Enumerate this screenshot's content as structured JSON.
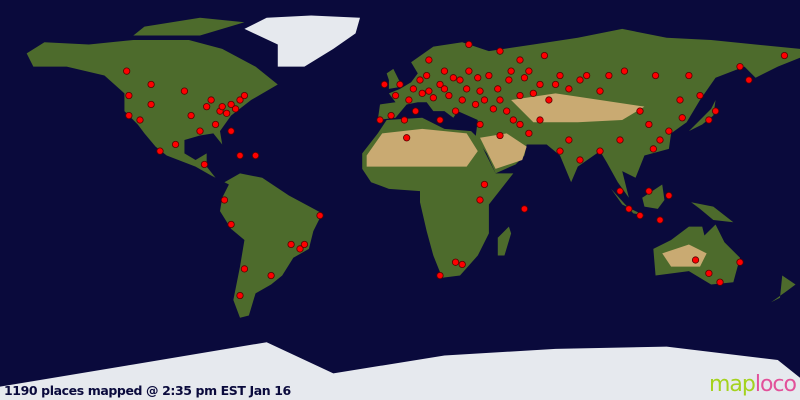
{
  "status_text": "1190 places mapped @ 2:35 pm EST Jan 16",
  "logo": {
    "part1": "map",
    "part2": "loco"
  },
  "colors": {
    "ocean": "#0a0a3c",
    "land": "#4d6b2c",
    "desert": "#c9aa72",
    "ice": "#e6e9ee",
    "marker": "#ff0000",
    "marker_outline": "#5a0000"
  },
  "markers_lonlat": [
    [
      -122,
      47
    ],
    [
      -122,
      38
    ],
    [
      -117,
      36
    ],
    [
      -112,
      43
    ],
    [
      -97,
      49
    ],
    [
      -94,
      38
    ],
    [
      -85,
      45
    ],
    [
      -81,
      40
    ],
    [
      -76,
      43
    ],
    [
      -72,
      45
    ],
    [
      -70,
      47
    ],
    [
      -83,
      34
    ],
    [
      -90,
      31
    ],
    [
      -76,
      31
    ],
    [
      -108,
      22
    ],
    [
      -101,
      25
    ],
    [
      -65,
      20
    ],
    [
      -72,
      20
    ],
    [
      -88,
      16
    ],
    [
      -112,
      52
    ],
    [
      -123,
      58
    ],
    [
      -80,
      42
    ],
    [
      -87,
      42
    ],
    [
      -78,
      39
    ],
    [
      -74,
      41
    ],
    [
      -79,
      0
    ],
    [
      -76,
      -11
    ],
    [
      -49,
      -20
    ],
    [
      -45,
      -22
    ],
    [
      -36,
      -7
    ],
    [
      -70,
      -31
    ],
    [
      -58,
      -34
    ],
    [
      -72,
      -43
    ],
    [
      -43,
      -20
    ],
    [
      -7,
      52
    ],
    [
      -2,
      47
    ],
    [
      4,
      45
    ],
    [
      9,
      54
    ],
    [
      13,
      49
    ],
    [
      18,
      52
    ],
    [
      22,
      47
    ],
    [
      27,
      54
    ],
    [
      31,
      58
    ],
    [
      36,
      49
    ],
    [
      40,
      56
    ],
    [
      45,
      45
    ],
    [
      49,
      54
    ],
    [
      54,
      47
    ],
    [
      58,
      58
    ],
    [
      63,
      52
    ],
    [
      67,
      45
    ],
    [
      72,
      56
    ],
    [
      31,
      70
    ],
    [
      45,
      67
    ],
    [
      -9,
      36
    ],
    [
      -4,
      38
    ],
    [
      2,
      36
    ],
    [
      18,
      36
    ],
    [
      25,
      40
    ],
    [
      34,
      43
    ],
    [
      54,
      63
    ],
    [
      65,
      65
    ],
    [
      81,
      54
    ],
    [
      90,
      49
    ],
    [
      94,
      56
    ],
    [
      101,
      58
    ],
    [
      13,
      63
    ],
    [
      20,
      58
    ],
    [
      7,
      40
    ],
    [
      36,
      34
    ],
    [
      54,
      34
    ],
    [
      0,
      52
    ],
    [
      6,
      50
    ],
    [
      10,
      48
    ],
    [
      15,
      46
    ],
    [
      20,
      50
    ],
    [
      24,
      55
    ],
    [
      30,
      50
    ],
    [
      35,
      55
    ],
    [
      38,
      45
    ],
    [
      44,
      50
    ],
    [
      50,
      58
    ],
    [
      56,
      55
    ],
    [
      60,
      48
    ],
    [
      70,
      52
    ],
    [
      76,
      50
    ],
    [
      84,
      56
    ],
    [
      12,
      56
    ],
    [
      28,
      45
    ],
    [
      42,
      41
    ],
    [
      48,
      40
    ],
    [
      3,
      28
    ],
    [
      18,
      -34
    ],
    [
      25,
      -28
    ],
    [
      36,
      0
    ],
    [
      38,
      7
    ],
    [
      56,
      -4
    ],
    [
      28,
      -29
    ],
    [
      45,
      29
    ],
    [
      63,
      36
    ],
    [
      76,
      27
    ],
    [
      81,
      18
    ],
    [
      72,
      22
    ],
    [
      51,
      36
    ],
    [
      58,
      30
    ],
    [
      108,
      40
    ],
    [
      112,
      34
    ],
    [
      117,
      27
    ],
    [
      126,
      45
    ],
    [
      135,
      47
    ],
    [
      142,
      40
    ],
    [
      153,
      60
    ],
    [
      157,
      54
    ],
    [
      173,
      65
    ],
    [
      115,
      56
    ],
    [
      130,
      56
    ],
    [
      99,
      27
    ],
    [
      90,
      22
    ],
    [
      127,
      37
    ],
    [
      139,
      36
    ],
    [
      121,
      31
    ],
    [
      114,
      23
    ],
    [
      99,
      4
    ],
    [
      103,
      -4
    ],
    [
      108,
      -7
    ],
    [
      117,
      -9
    ],
    [
      121,
      2
    ],
    [
      112,
      4
    ],
    [
      133,
      -27
    ],
    [
      139,
      -33
    ],
    [
      144,
      -37
    ],
    [
      153,
      -28
    ]
  ]
}
